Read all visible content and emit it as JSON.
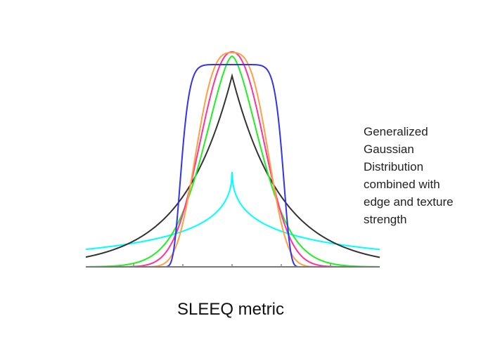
{
  "annotation": {
    "lines": [
      "Generalized",
      "Gaussian",
      "Distribution",
      "combined with",
      "edge and texture",
      "strength"
    ]
  },
  "caption": "SLEEQ metric"
}
